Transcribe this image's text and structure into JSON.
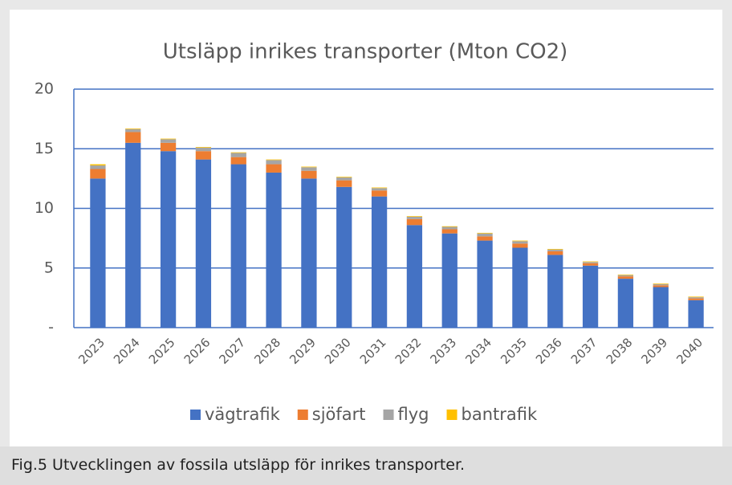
{
  "chart_data": {
    "type": "stacked_bar",
    "title": "Utsläpp inrikes transporter (Mton CO2)",
    "categories": [
      "2023",
      "2024",
      "2025",
      "2026",
      "2027",
      "2028",
      "2029",
      "2030",
      "2031",
      "2032",
      "2033",
      "2034",
      "2035",
      "2036",
      "2037",
      "2038",
      "2039",
      "2040"
    ],
    "series": [
      {
        "name": "vägtrafik",
        "color": "#4472c4",
        "values": [
          12.5,
          15.5,
          14.8,
          14.1,
          13.7,
          13.0,
          12.5,
          11.8,
          11.0,
          8.6,
          7.9,
          7.3,
          6.7,
          6.1,
          5.2,
          4.1,
          3.4,
          2.3
        ]
      },
      {
        "name": "sjöfart",
        "color": "#ed7d31",
        "values": [
          0.8,
          0.9,
          0.7,
          0.7,
          0.6,
          0.7,
          0.65,
          0.55,
          0.5,
          0.5,
          0.35,
          0.35,
          0.35,
          0.3,
          0.2,
          0.2,
          0.15,
          0.15
        ]
      },
      {
        "name": "flyg",
        "color": "#a5a5a5",
        "values": [
          0.3,
          0.25,
          0.3,
          0.3,
          0.35,
          0.35,
          0.3,
          0.25,
          0.2,
          0.2,
          0.2,
          0.25,
          0.2,
          0.15,
          0.1,
          0.1,
          0.1,
          0.1
        ]
      },
      {
        "name": "bantrafik",
        "color": "#ffc000",
        "values": [
          0.1,
          0.05,
          0.05,
          0.05,
          0.05,
          0.05,
          0.05,
          0.05,
          0.05,
          0.05,
          0.05,
          0.05,
          0.05,
          0.05,
          0.05,
          0.05,
          0.05,
          0.05
        ]
      }
    ],
    "ylim": [
      0,
      20
    ],
    "yticks": [
      {
        "value": 0,
        "label": "-"
      },
      5,
      10,
      15,
      20
    ],
    "grid": true,
    "legend": "bottom"
  },
  "caption": "Fig.5 Utvecklingen av fossila utsläpp för inrikes transporter."
}
